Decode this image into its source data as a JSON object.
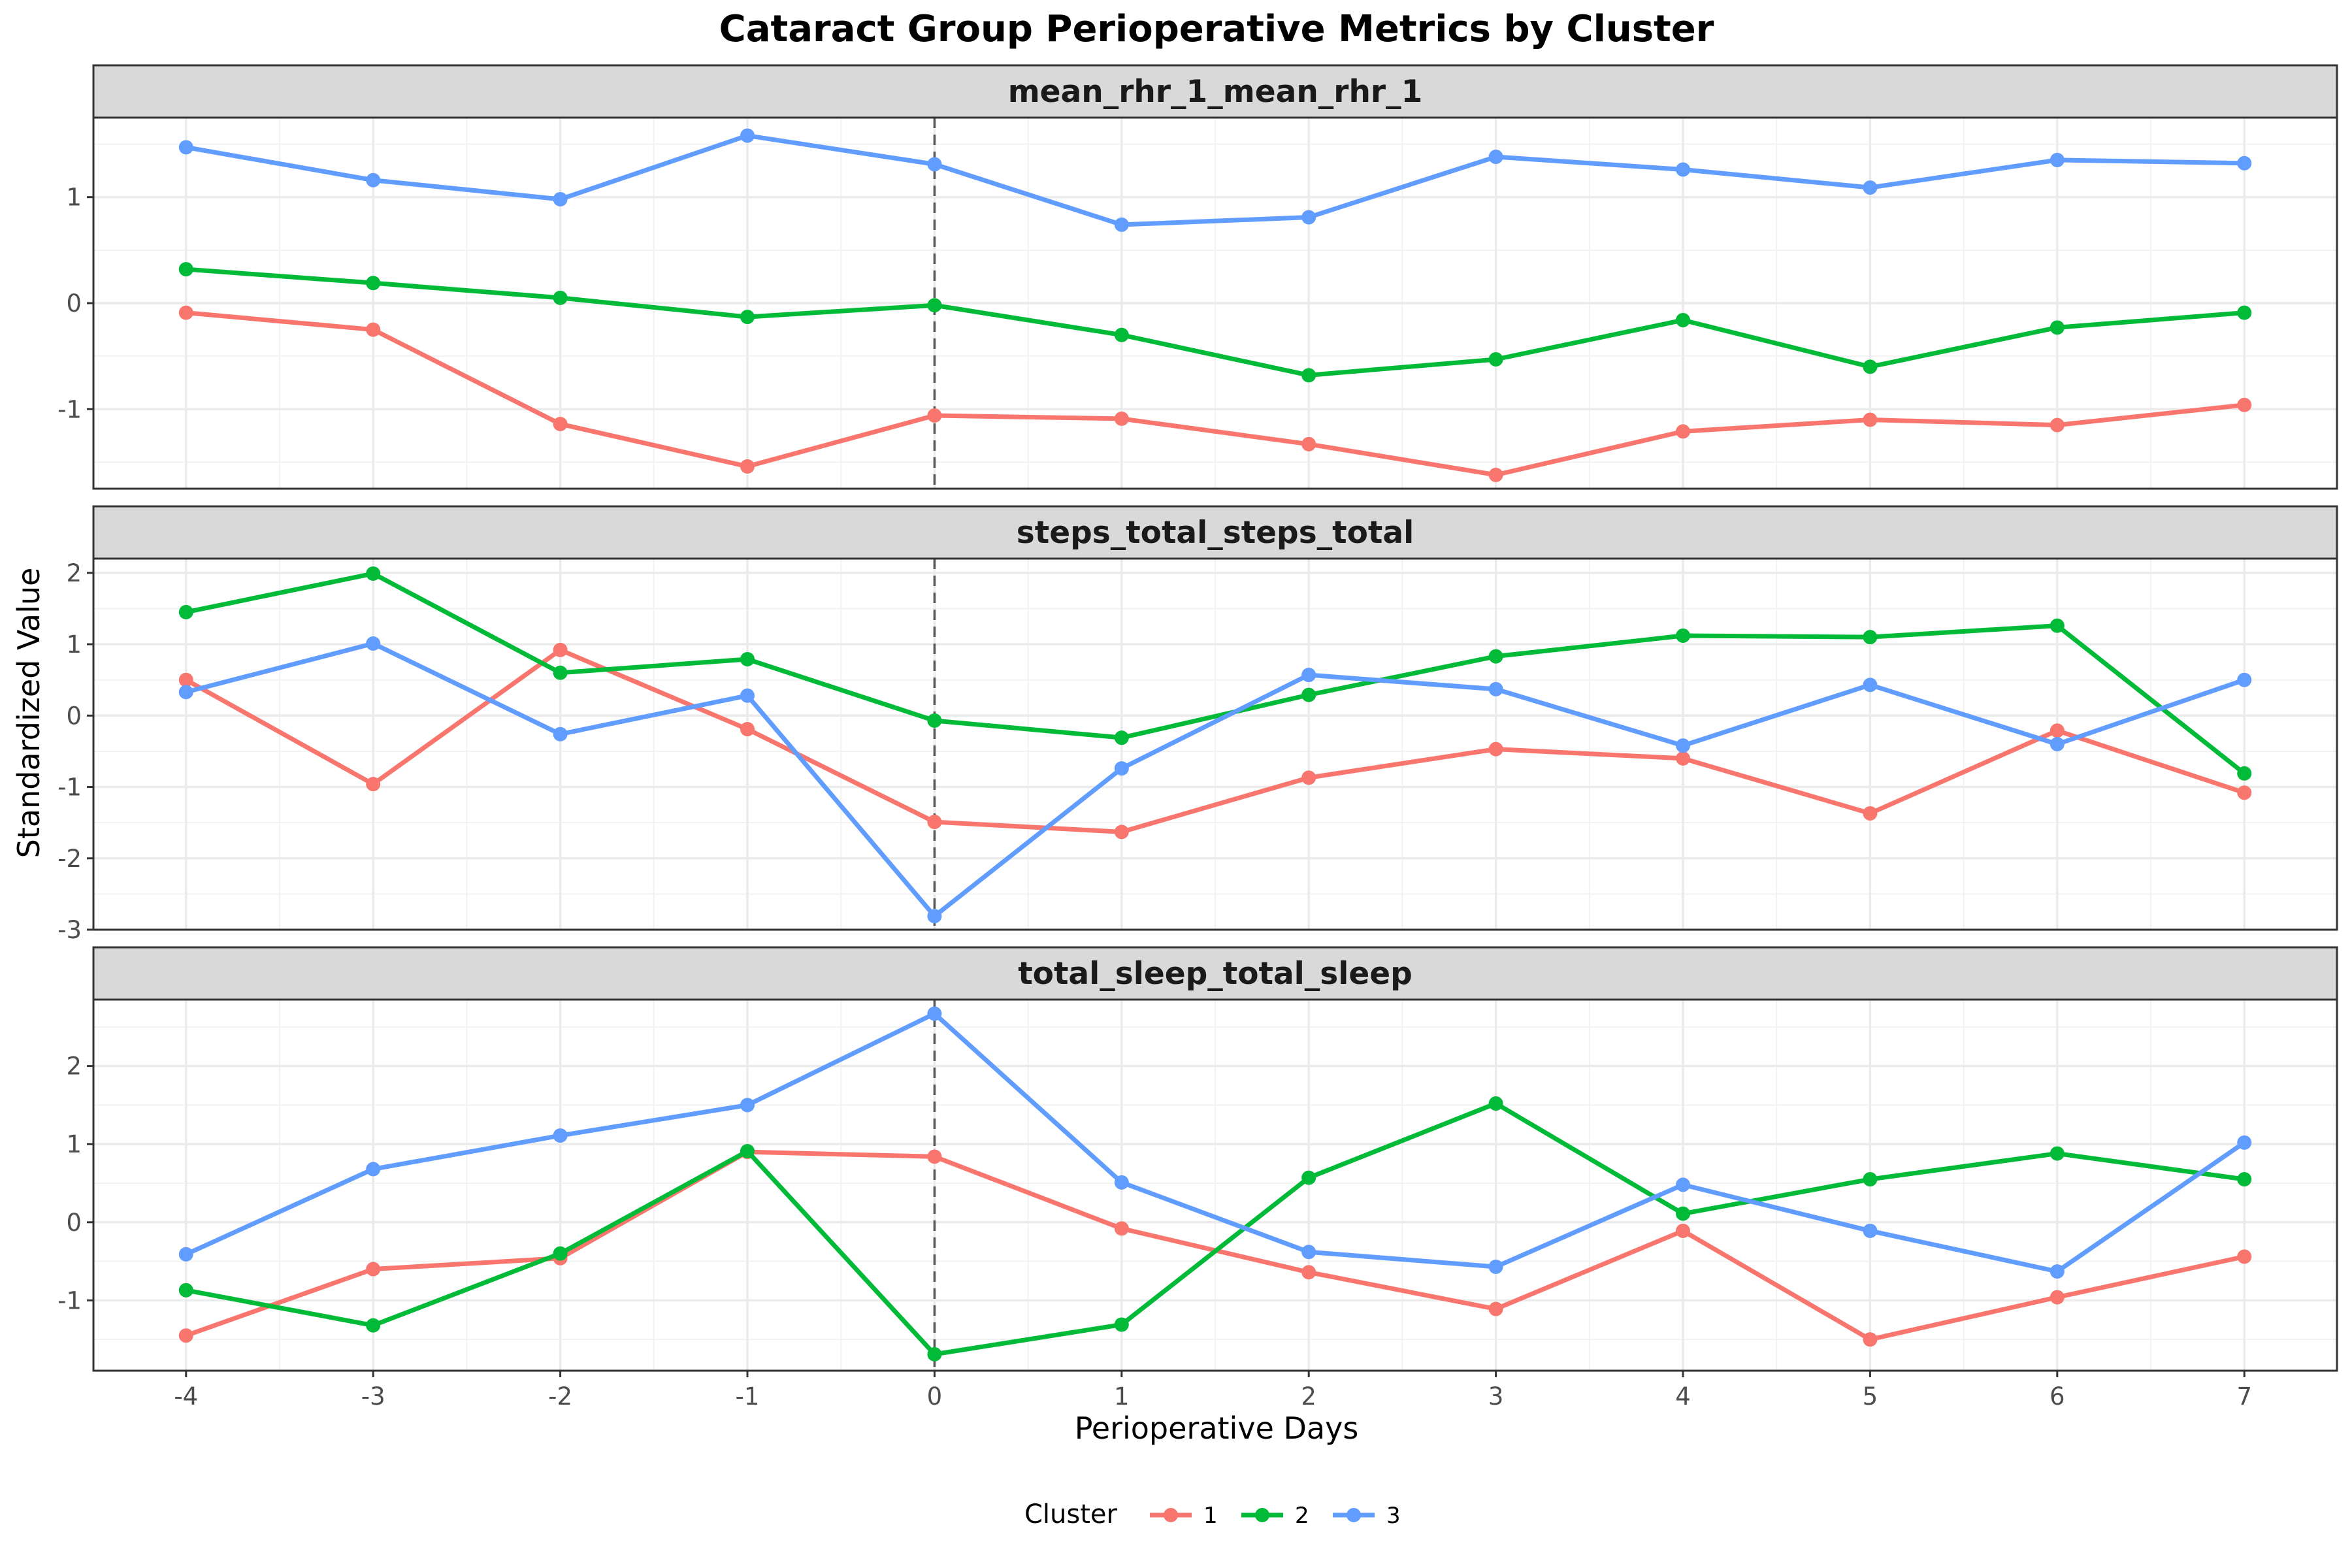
{
  "chart_data": {
    "type": "line",
    "title": "Cataract Group Perioperative Metrics by Cluster",
    "xlabel": "Perioperative Days",
    "ylabel": "Standardized Value",
    "x": [
      -4,
      -3,
      -2,
      -1,
      0,
      1,
      2,
      3,
      4,
      5,
      6,
      7
    ],
    "x_tick_labels": [
      "-4",
      "-3",
      "-2",
      "-1",
      "0",
      "1",
      "2",
      "3",
      "4",
      "5",
      "6",
      "7"
    ],
    "reference_line_x": 0,
    "grid": true,
    "legend": {
      "title": "Cluster",
      "position": "bottom",
      "entries": [
        "1",
        "2",
        "3"
      ]
    },
    "colors": {
      "1": "#F8766D",
      "2": "#00BA38",
      "3": "#619CFF"
    },
    "panels": [
      {
        "strip": "mean_rhr_1_mean_rhr_1",
        "ylim": [
          -1.75,
          1.75
        ],
        "y_ticks": [
          -1,
          0,
          1
        ],
        "y_tick_labels": [
          "-1",
          "0",
          "1"
        ],
        "series": [
          {
            "name": "1",
            "values": [
              -0.09,
              -0.25,
              -1.14,
              -1.54,
              -1.06,
              -1.09,
              -1.33,
              -1.62,
              -1.21,
              -1.1,
              -1.15,
              -0.96
            ]
          },
          {
            "name": "2",
            "values": [
              0.32,
              0.19,
              0.05,
              -0.13,
              -0.02,
              -0.3,
              -0.68,
              -0.53,
              -0.16,
              -0.6,
              -0.23,
              -0.09
            ]
          },
          {
            "name": "3",
            "values": [
              1.47,
              1.16,
              0.98,
              1.58,
              1.31,
              0.74,
              0.81,
              1.38,
              1.26,
              1.09,
              1.35,
              1.32
            ]
          }
        ]
      },
      {
        "strip": "steps_total_steps_total",
        "ylim": [
          -3.0,
          2.2
        ],
        "y_ticks": [
          -3,
          -2,
          -1,
          0,
          1,
          2
        ],
        "y_tick_labels": [
          "-3",
          "-2",
          "-1",
          "0",
          "1",
          "2"
        ],
        "series": [
          {
            "name": "1",
            "values": [
              0.5,
              -0.96,
              0.92,
              -0.19,
              -1.49,
              -1.63,
              -0.87,
              -0.47,
              -0.6,
              -1.37,
              -0.21,
              -1.08
            ]
          },
          {
            "name": "2",
            "values": [
              1.45,
              1.99,
              0.6,
              0.79,
              -0.07,
              -0.31,
              0.29,
              0.83,
              1.12,
              1.1,
              1.26,
              -0.81
            ]
          },
          {
            "name": "3",
            "values": [
              0.33,
              1.01,
              -0.26,
              0.28,
              -2.81,
              -0.74,
              0.57,
              0.37,
              -0.42,
              0.43,
              -0.4,
              0.5
            ]
          }
        ]
      },
      {
        "strip": "total_sleep_total_sleep",
        "ylim": [
          -1.9,
          2.85
        ],
        "y_ticks": [
          -1,
          0,
          1,
          2
        ],
        "y_tick_labels": [
          "-1",
          "0",
          "1",
          "2"
        ],
        "series": [
          {
            "name": "1",
            "values": [
              -1.45,
              -0.6,
              -0.46,
              0.9,
              0.84,
              -0.08,
              -0.64,
              -1.11,
              -0.11,
              -1.5,
              -0.96,
              -0.44
            ]
          },
          {
            "name": "2",
            "values": [
              -0.87,
              -1.32,
              -0.4,
              0.91,
              -1.69,
              -1.31,
              0.57,
              1.52,
              0.11,
              0.55,
              0.88,
              0.55
            ]
          },
          {
            "name": "3",
            "values": [
              -0.41,
              0.68,
              1.11,
              1.5,
              2.67,
              0.51,
              -0.38,
              -0.57,
              0.48,
              -0.11,
              -0.63,
              1.02
            ]
          }
        ]
      }
    ]
  }
}
